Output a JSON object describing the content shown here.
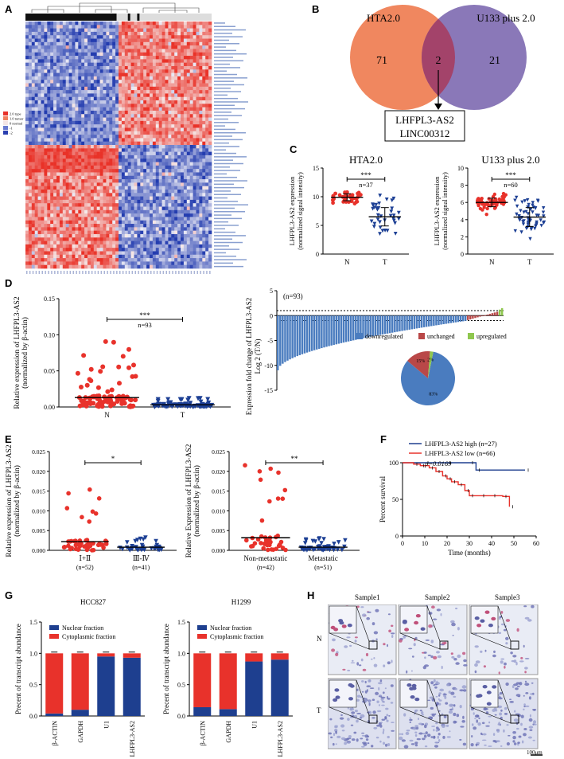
{
  "panels": {
    "A": "A",
    "B": "B",
    "C": "C",
    "D": "D",
    "E": "E",
    "F": "F",
    "G": "G",
    "H": "H"
  },
  "colors": {
    "red": "#e8322b",
    "blue": "#1c3f94",
    "navy": "#1e3f8f",
    "venn_left": "#f0875f",
    "venn_right": "#8a78b8",
    "venn_overlap": "#a3436a",
    "green": "#7fbf3f",
    "pie_down": "#4a7cbf",
    "pie_unch": "#b94848",
    "pie_up": "#8fc74f"
  },
  "panel_A": {
    "legend": {
      "r1": "2.0 type",
      "r2": "1.0 tumor",
      "r3": "0 normal",
      "r4": "-1",
      "r5": "-2"
    }
  },
  "panel_B": {
    "left_label": "HTA2.0",
    "right_label": "U133 plus 2.0",
    "left_count": "71",
    "overlap_count": "2",
    "right_count": "21",
    "genes": [
      "LHFPL3-AS2",
      "LINC00312"
    ]
  },
  "panel_C": {
    "chart_data": [
      {
        "type": "scatter",
        "title": "HTA2.0",
        "ylabel": "LHFPL3-AS2 expression",
        "ylabel2": "(normalized signal intensity)",
        "categories": [
          "N",
          "T"
        ],
        "ylim": [
          0,
          15
        ],
        "yticks": [
          "0",
          "5",
          "10",
          "15"
        ],
        "n_label": "n=37",
        "sig": "***",
        "series": [
          {
            "group": "N",
            "mean": 9.9,
            "sd": 0.6
          },
          {
            "group": "T",
            "mean": 6.5,
            "sd": 1.6
          }
        ]
      },
      {
        "type": "scatter",
        "title": "U133 plus 2.0",
        "ylabel": "LHFPL3-AS2 expression",
        "ylabel2": "(normalized signal intensity)",
        "categories": [
          "N",
          "T"
        ],
        "ylim": [
          0,
          10
        ],
        "yticks": [
          "0",
          "2",
          "4",
          "6",
          "8",
          "10"
        ],
        "n_label": "n=60",
        "sig": "***",
        "series": [
          {
            "group": "N",
            "mean": 6.0,
            "sd": 0.5
          },
          {
            "group": "T",
            "mean": 4.3,
            "sd": 1.1
          }
        ]
      }
    ]
  },
  "panel_D": {
    "chart_data": [
      {
        "type": "scatter",
        "ylabel": "Relative expression of LHFPL3-AS2",
        "ylabel2": "(normalized by β-actin)",
        "categories": [
          "N",
          "T"
        ],
        "ylim": [
          0,
          0.15
        ],
        "yticks": [
          "0.00",
          "0.05",
          "0.10",
          "0.15"
        ],
        "n_label": "n=93",
        "sig": "***",
        "series": [
          {
            "group": "N",
            "mean": 0.013
          },
          {
            "group": "T",
            "mean": 0.003
          }
        ]
      },
      {
        "type": "bar",
        "ylabel": "Expression fold change of LHFPL3-AS2",
        "ylabel2": "Log 2 (T/N)",
        "n_label": "(n=93)",
        "ylim": [
          -15,
          5
        ],
        "yticks": [
          "-15",
          "-10",
          "-5",
          "0",
          "5"
        ],
        "legend": [
          "downregulated",
          "unchanged",
          "upregulated"
        ],
        "pie": {
          "labels": [
            "downregulated",
            "unchanged",
            "upregulated"
          ],
          "values": [
            83,
            15,
            2
          ],
          "text": [
            "83%",
            "15%",
            "2%"
          ]
        }
      }
    ]
  },
  "panel_E": {
    "chart_data": [
      {
        "type": "scatter",
        "ylabel": "Relative expression of LHFPL3-AS2",
        "ylabel2": "(normalized by β-actin)",
        "categories": [
          "Ⅰ+Ⅱ",
          "Ⅲ-Ⅳ"
        ],
        "counts": [
          "(n=52)",
          "(n=41)"
        ],
        "ylim": [
          0,
          0.025
        ],
        "yticks": [
          "0.000",
          "0.005",
          "0.010",
          "0.015",
          "0.020",
          "0.025"
        ],
        "sig": "*",
        "series": [
          {
            "group": "Ⅰ+Ⅱ",
            "mean": 0.0022
          },
          {
            "group": "Ⅲ-Ⅳ",
            "mean": 0.0008
          }
        ]
      },
      {
        "type": "scatter",
        "ylabel": "Relative Expression of LHFPL3-AS2",
        "ylabel2": "(normalized by β-actin)",
        "categories": [
          "Non-metastatic",
          "Metastatic"
        ],
        "counts": [
          "(n=42)",
          "(n=51)"
        ],
        "ylim": [
          0,
          0.025
        ],
        "yticks": [
          "0.000",
          "0.005",
          "0.010",
          "0.015",
          "0.020",
          "0.025"
        ],
        "sig": "**",
        "series": [
          {
            "group": "Non-metastatic",
            "mean": 0.0032
          },
          {
            "group": "Metastatic",
            "mean": 0.0008
          }
        ]
      }
    ]
  },
  "panel_F": {
    "chart_data": {
      "type": "line",
      "ylabel": "Percent survival",
      "xlabel": "Time (months)",
      "ylim": [
        0,
        100
      ],
      "xlim": [
        0,
        60
      ],
      "yticks": [
        "0",
        "50",
        "100"
      ],
      "xticks": [
        "0",
        "10",
        "20",
        "30",
        "40",
        "50",
        "60"
      ],
      "legend": [
        "LHFPL3-AS2 high (n=27)",
        "LHFPL3-AS2 low (n=66)"
      ],
      "pvalue": "p=0.0169",
      "series": [
        {
          "name": "LHFPL3-AS2 high (n=27)",
          "x": [
            0,
            10,
            20,
            30,
            33,
            55
          ],
          "y": [
            100,
            100,
            100,
            100,
            90,
            90
          ]
        },
        {
          "name": "LHFPL3-AS2 low (n=66)",
          "x": [
            0,
            5,
            8,
            12,
            15,
            18,
            20,
            22,
            25,
            28,
            30,
            35,
            40,
            45,
            48
          ],
          "y": [
            100,
            98,
            96,
            93,
            88,
            82,
            78,
            74,
            70,
            62,
            55,
            55,
            55,
            54,
            40
          ]
        }
      ]
    }
  },
  "panel_G": {
    "chart_data": [
      {
        "type": "bar",
        "title": "HCC827",
        "ylabel": "Precent of transcript abundance",
        "categories": [
          "β-ACTIN",
          "GAPDH",
          "U1",
          "LHFPL3-AS2"
        ],
        "ylim": [
          0,
          1.5
        ],
        "yticks": [
          "0.0",
          "0.5",
          "1.0",
          "1.5"
        ],
        "legend": [
          "Nuclear fraction",
          "Cytoplasmic fraction"
        ],
        "series": [
          {
            "name": "Nuclear fraction",
            "values": [
              0.04,
              0.1,
              0.95,
              0.93
            ]
          },
          {
            "name": "Cytoplasmic fraction",
            "values": [
              0.96,
              0.9,
              0.05,
              0.07
            ]
          }
        ]
      },
      {
        "type": "bar",
        "title": "H1299",
        "ylabel": "Precent of transcript abundance",
        "categories": [
          "β-ACTIN",
          "GAPDH",
          "U1",
          "LHFPL3-AS2"
        ],
        "ylim": [
          0,
          1.5
        ],
        "yticks": [
          "0.0",
          "0.5",
          "1.0",
          "1.5"
        ],
        "legend": [
          "Nuclear fraction",
          "Cytoplasmic fraction"
        ],
        "series": [
          {
            "name": "Nuclear fraction",
            "values": [
              0.14,
              0.11,
              0.87,
              0.9
            ]
          },
          {
            "name": "Cytoplasmic fraction",
            "values": [
              0.86,
              0.89,
              0.13,
              0.1
            ]
          }
        ]
      }
    ]
  },
  "panel_H": {
    "samples": [
      "Sample1",
      "Sample2",
      "Sample3"
    ],
    "rows": [
      "N",
      "T"
    ],
    "scale_bar": "100μm"
  }
}
